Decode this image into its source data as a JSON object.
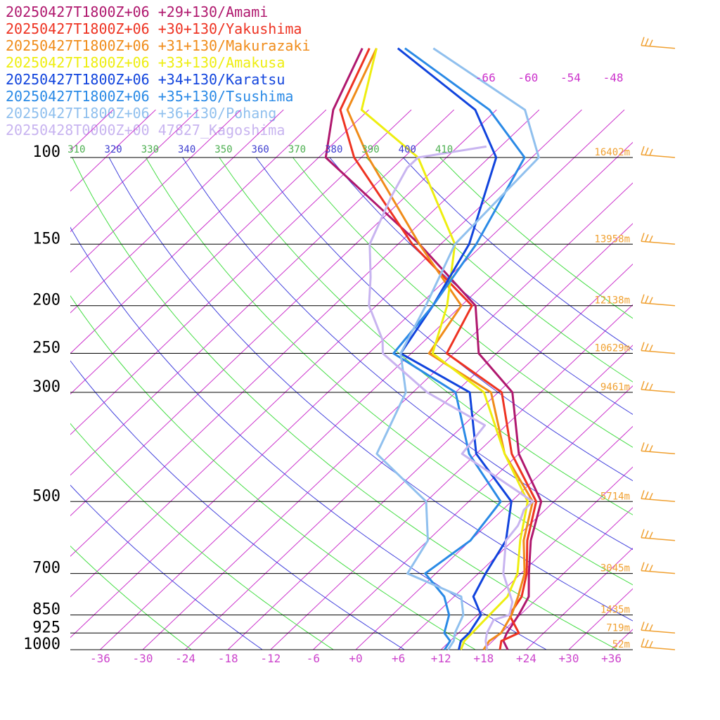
{
  "chart_data": {
    "type": "line",
    "title": "",
    "x_axis": {
      "label": "",
      "range": [
        -42,
        42
      ],
      "ticks": [
        "-36",
        "-30",
        "-24",
        "-18",
        "-12",
        "-6",
        "+0",
        "+6",
        "+12",
        "+18",
        "+24",
        "+30",
        "+36"
      ],
      "tick_values": [
        -36,
        -30,
        -24,
        -18,
        -12,
        -6,
        0,
        6,
        12,
        18,
        24,
        30,
        36
      ],
      "tick_color": "#cc44cc"
    },
    "y_axis": {
      "label": "",
      "scale": "log",
      "range": [
        1000,
        100
      ],
      "levels": [
        {
          "p": 100,
          "label": "100",
          "height": "16402m"
        },
        {
          "p": 150,
          "label": "150",
          "height": "13958m"
        },
        {
          "p": 200,
          "label": "200",
          "height": "12138m"
        },
        {
          "p": 250,
          "label": "250",
          "height": "10629m"
        },
        {
          "p": 300,
          "label": "300",
          "height": "9461m"
        },
        {
          "p": 500,
          "label": "500",
          "height": "5714m"
        },
        {
          "p": 700,
          "label": "700",
          "height": "3045m"
        },
        {
          "p": 850,
          "label": "850",
          "height": "1435m"
        },
        {
          "p": 925,
          "label": "925",
          "height": "719m"
        },
        {
          "p": 1000,
          "label": "1000",
          "height": "52m"
        }
      ]
    },
    "theta_labels": [
      "310",
      "320",
      "330",
      "340",
      "350",
      "360",
      "370",
      "380",
      "390",
      "400",
      "410"
    ],
    "theta_label_colors": [
      "#4caf50",
      "#3f3fd0",
      "#4caf50",
      "#3f3fd0",
      "#4caf50",
      "#3f3fd0",
      "#4caf50",
      "#3f3fd0",
      "#4caf50",
      "#3f3fd0",
      "#4caf50"
    ],
    "upper_temp_labels": [
      "-66",
      "-60",
      "-54",
      "-48"
    ],
    "colors": {
      "isobar": "#000000",
      "isotherm": "#cc33cc",
      "dry_adiabat_a": "#4444dd",
      "dry_adiabat_b": "#44dd44",
      "height_label": "#f0a030",
      "barb": "#f0a030"
    },
    "grid": true,
    "legend_position": "top-left",
    "series": [
      {
        "name": "20250427T1800Z+06 +29+130/Amami",
        "color": "#b0186e",
        "points": [
          [
            1000,
            21.4
          ],
          [
            960,
            19.5
          ],
          [
            925,
            18.8
          ],
          [
            850,
            17.8
          ],
          [
            780,
            16.5
          ],
          [
            700,
            13.1
          ],
          [
            600,
            8.5
          ],
          [
            500,
            4.2
          ],
          [
            400,
            -6
          ],
          [
            300,
            -16
          ],
          [
            250,
            -26.5
          ],
          [
            200,
            -34
          ],
          [
            150,
            -51
          ],
          [
            100,
            -77
          ],
          [
            80,
            -83
          ],
          [
            60,
            -88
          ]
        ]
      },
      {
        "name": "20250427T1800Z+06 +30+130/Yakushima",
        "color": "#ee3322",
        "points": [
          [
            1000,
            20.3
          ],
          [
            960,
            19.2
          ],
          [
            925,
            20.5
          ],
          [
            850,
            16.5
          ],
          [
            780,
            15.5
          ],
          [
            700,
            12.8
          ],
          [
            600,
            8
          ],
          [
            500,
            3.5
          ],
          [
            400,
            -7
          ],
          [
            300,
            -17.5
          ],
          [
            250,
            -31
          ],
          [
            200,
            -34.5
          ],
          [
            150,
            -52
          ],
          [
            100,
            -73
          ],
          [
            80,
            -82
          ],
          [
            60,
            -87
          ]
        ]
      },
      {
        "name": "20250427T1800Z+06 +31+130/Makurazaki",
        "color": "#f08c1a",
        "points": [
          [
            1000,
            18
          ],
          [
            960,
            17.5
          ],
          [
            925,
            18
          ],
          [
            850,
            16.8
          ],
          [
            780,
            15
          ],
          [
            700,
            12.5
          ],
          [
            600,
            7.5
          ],
          [
            500,
            3
          ],
          [
            400,
            -8
          ],
          [
            300,
            -19
          ],
          [
            250,
            -33.5
          ],
          [
            200,
            -36
          ],
          [
            150,
            -51
          ],
          [
            100,
            -71
          ],
          [
            80,
            -81
          ],
          [
            60,
            -86
          ]
        ]
      },
      {
        "name": "20250427T1800Z+06 +33+130/Amakusa",
        "color": "#eeee10",
        "points": [
          [
            1000,
            14.8
          ],
          [
            960,
            14
          ],
          [
            925,
            13.9
          ],
          [
            850,
            13.7
          ],
          [
            780,
            13.5
          ],
          [
            700,
            11.5
          ],
          [
            600,
            7
          ],
          [
            500,
            2.3
          ],
          [
            400,
            -8
          ],
          [
            300,
            -20
          ],
          [
            250,
            -33
          ],
          [
            200,
            -38
          ],
          [
            150,
            -46
          ],
          [
            100,
            -64
          ],
          [
            80,
            -79
          ],
          [
            60,
            -86
          ]
        ]
      },
      {
        "name": "20250427T1800Z+06 +34+130/Karatsu",
        "color": "#1144dd",
        "points": [
          [
            1000,
            14.5
          ],
          [
            960,
            13.5
          ],
          [
            925,
            13.5
          ],
          [
            850,
            12.5
          ],
          [
            780,
            8.7
          ],
          [
            700,
            7
          ],
          [
            600,
            5
          ],
          [
            500,
            0
          ],
          [
            400,
            -12
          ],
          [
            300,
            -22
          ],
          [
            250,
            -37.5
          ],
          [
            200,
            -40
          ],
          [
            150,
            -44
          ],
          [
            100,
            -53
          ],
          [
            80,
            -63
          ],
          [
            60,
            -83
          ]
        ]
      },
      {
        "name": "20250427T1800Z+06 +35+130/Tsushima",
        "color": "#2a8ae6",
        "points": [
          [
            1000,
            12.5
          ],
          [
            960,
            12
          ],
          [
            925,
            10
          ],
          [
            850,
            8
          ],
          [
            780,
            4.6
          ],
          [
            700,
            -1.5
          ],
          [
            600,
            0
          ],
          [
            500,
            -1.5
          ],
          [
            400,
            -13
          ],
          [
            300,
            -24
          ],
          [
            250,
            -38.5
          ],
          [
            200,
            -40
          ],
          [
            150,
            -43
          ],
          [
            100,
            -49
          ],
          [
            80,
            -61
          ],
          [
            60,
            -82
          ]
        ]
      },
      {
        "name": "20250427T1800Z+06 +36+130/Pohang",
        "color": "#90c0ee",
        "points": [
          [
            1000,
            13
          ],
          [
            960,
            12.5
          ],
          [
            925,
            11.5
          ],
          [
            850,
            10
          ],
          [
            780,
            7
          ],
          [
            700,
            -4
          ],
          [
            600,
            -6
          ],
          [
            500,
            -12
          ],
          [
            400,
            -26
          ],
          [
            300,
            -31
          ],
          [
            250,
            -37.5
          ],
          [
            200,
            -41
          ],
          [
            150,
            -46
          ],
          [
            100,
            -47
          ],
          [
            80,
            -56
          ],
          [
            60,
            -78
          ]
        ]
      },
      {
        "name": "20250428T0000Z+00 47827_Kagoshima",
        "color": "#c8b4f0",
        "points": [
          [
            1000,
            18.5
          ],
          [
            960,
            17
          ],
          [
            925,
            16
          ],
          [
            870,
            15
          ],
          [
            850,
            16.5
          ],
          [
            800,
            15
          ],
          [
            700,
            9.5
          ],
          [
            600,
            5
          ],
          [
            560,
            4.5
          ],
          [
            545,
            4
          ],
          [
            520,
            3
          ],
          [
            500,
            3
          ],
          [
            450,
            -5
          ],
          [
            400,
            -14
          ],
          [
            350,
            -15
          ],
          [
            300,
            -28
          ],
          [
            250,
            -40
          ],
          [
            235,
            -42
          ],
          [
            200,
            -49
          ],
          [
            175,
            -53
          ],
          [
            150,
            -58
          ],
          [
            120,
            -62
          ],
          [
            105,
            -64
          ],
          [
            100,
            -64
          ],
          [
            95,
            -56
          ]
        ]
      }
    ]
  }
}
